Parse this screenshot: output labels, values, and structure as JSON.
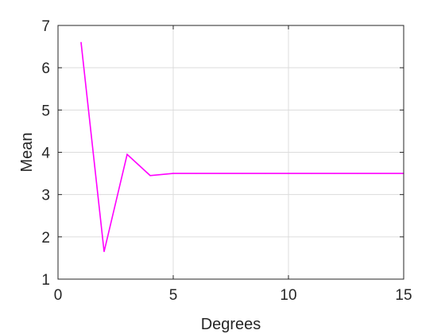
{
  "chart_data": {
    "type": "line",
    "xlabel": "Degrees",
    "ylabel": "Mean",
    "xlim": [
      0,
      15
    ],
    "ylim": [
      1,
      7
    ],
    "xticks": [
      0,
      5,
      10,
      15
    ],
    "yticks": [
      1,
      2,
      3,
      4,
      5,
      6,
      7
    ],
    "grid": true,
    "series": [
      {
        "color": "#ff00ff",
        "x": [
          1,
          2,
          3,
          4,
          5,
          6,
          7,
          8,
          9,
          10,
          11,
          12,
          13,
          14,
          15
        ],
        "values": [
          6.6,
          1.65,
          3.95,
          3.45,
          3.5,
          3.5,
          3.5,
          3.5,
          3.5,
          3.5,
          3.5,
          3.5,
          3.5,
          3.5,
          3.5
        ]
      }
    ]
  }
}
